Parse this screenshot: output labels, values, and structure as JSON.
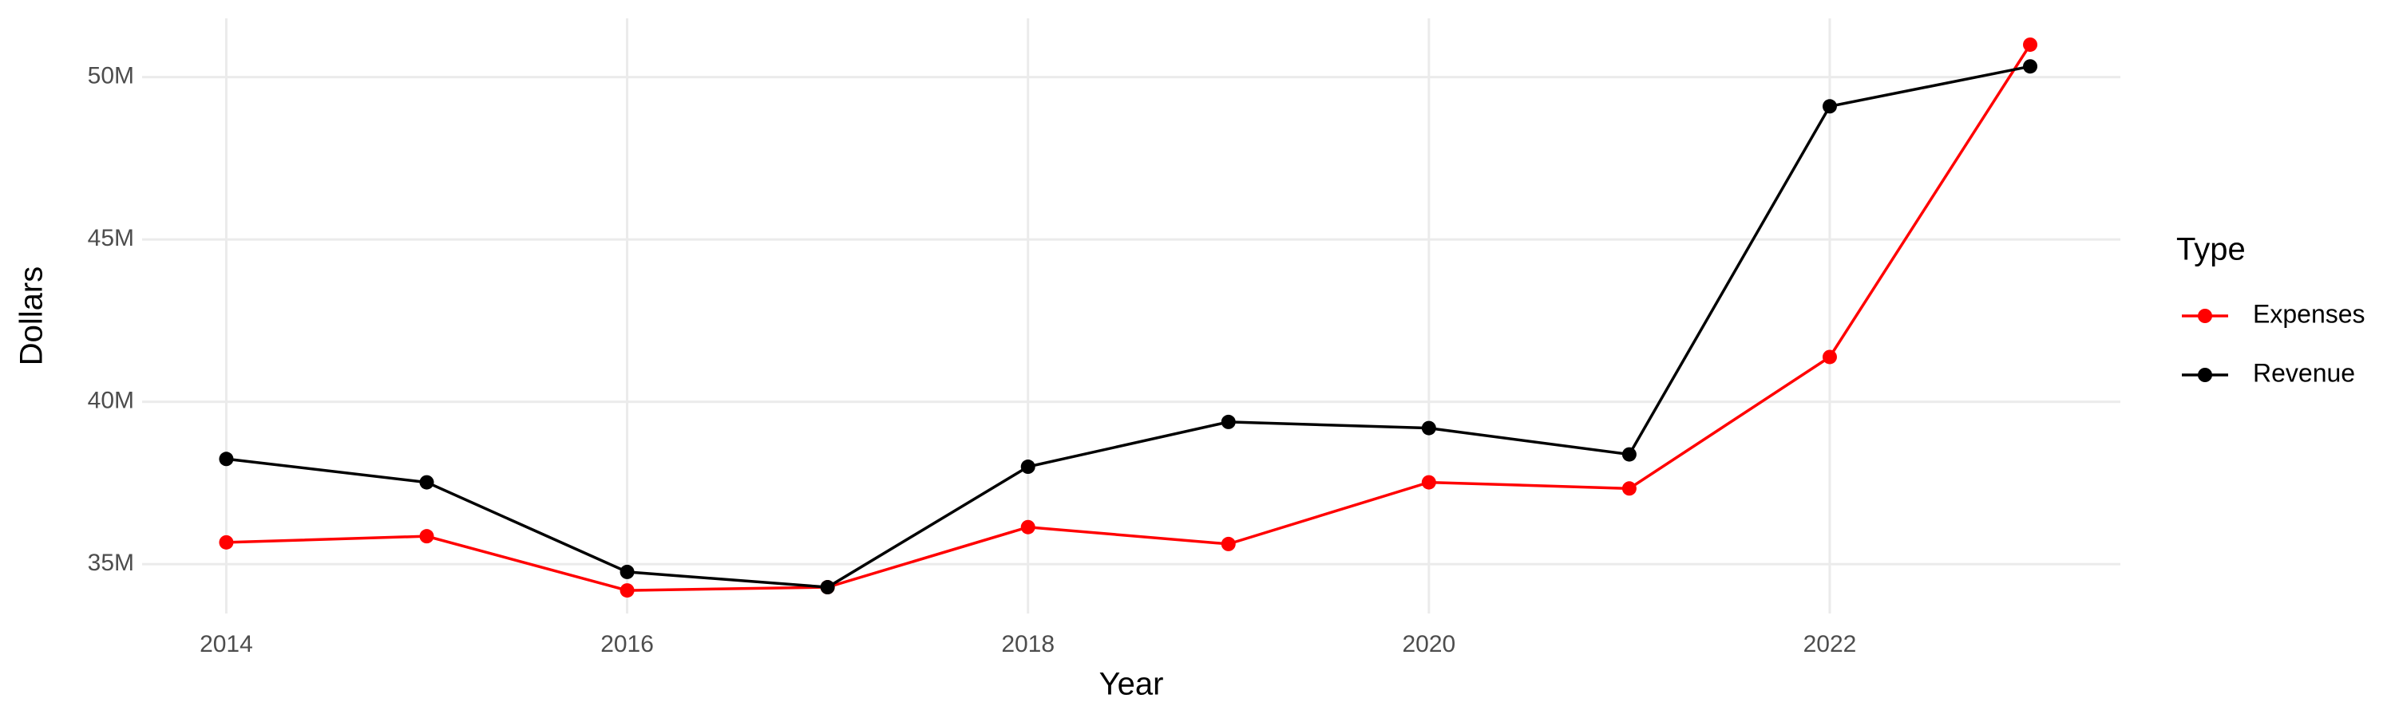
{
  "chart_data": {
    "type": "line",
    "x_label": "Year",
    "y_label": "Dollars",
    "legend_title": "Type",
    "x": [
      2014,
      2015,
      2016,
      2017,
      2018,
      2019,
      2020,
      2021,
      2022,
      2023
    ],
    "series": [
      {
        "name": "Expenses",
        "color": "#ff0000",
        "values": [
          35670000,
          35860000,
          34190000,
          34290000,
          36140000,
          35620000,
          37520000,
          37330000,
          41380000,
          51000000
        ]
      },
      {
        "name": "Revenue",
        "color": "#000000",
        "values": [
          38240000,
          37520000,
          34760000,
          34290000,
          38000000,
          39380000,
          39190000,
          38380000,
          49100000,
          50330000
        ]
      }
    ],
    "xlim": [
      2013.58,
      2023.45
    ],
    "xticks": [
      2014,
      2016,
      2018,
      2020,
      2022
    ],
    "ylim": [
      33480000,
      51810000
    ],
    "yticks": [
      {
        "value": 35000000,
        "label": "35M"
      },
      {
        "value": 40000000,
        "label": "40M"
      },
      {
        "value": 45000000,
        "label": "45M"
      },
      {
        "value": 50000000,
        "label": "50M"
      }
    ],
    "grid": true,
    "legend": "right"
  }
}
